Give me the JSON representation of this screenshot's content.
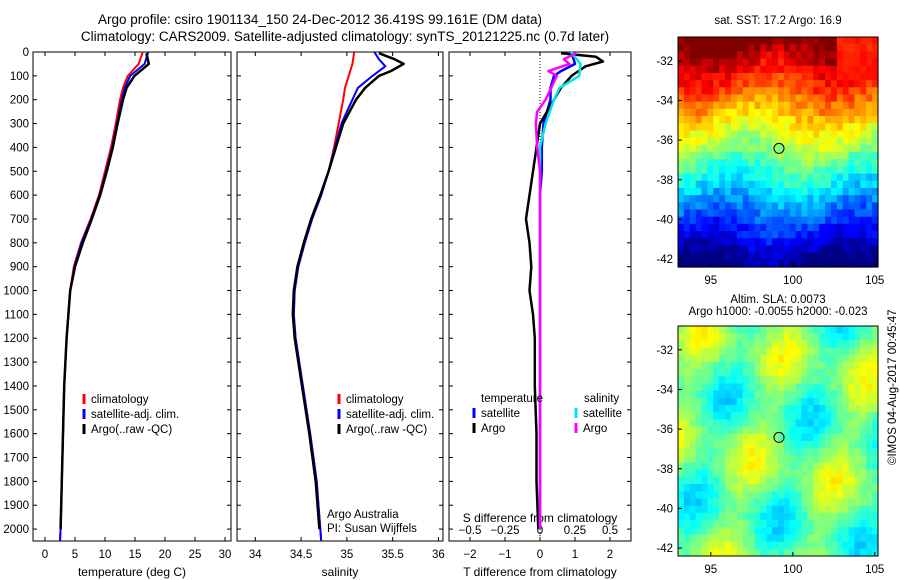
{
  "header": {
    "title_line1": "Argo profile: csiro 1901134_150 24-Dec-2012 36.419S 99.161E (DM data)",
    "title_line2": "Climatology: CARS2009. Satellite-adjusted climatology: synTS_20121225.nc (0.7d later)"
  },
  "colors": {
    "climatology": "#ff0000",
    "satellite": "#0000ff",
    "argo": "#000000",
    "salinity_satellite": "#00e5e5",
    "salinity_argo": "#ff00ff"
  },
  "chart_data": [
    {
      "type": "line",
      "name": "temperature-profile",
      "xlabel": "temperature (deg C)",
      "xlim": [
        -2,
        31
      ],
      "xticks": [
        0,
        5,
        10,
        15,
        20,
        25,
        30
      ],
      "ylim": [
        0,
        2050
      ],
      "yticks": [
        0,
        100,
        200,
        300,
        400,
        500,
        600,
        700,
        800,
        900,
        1000,
        1100,
        1200,
        1300,
        1400,
        1500,
        1600,
        1700,
        1800,
        1900,
        2000
      ],
      "legend": [
        "climatology",
        "satellite-adj. clim.",
        "Argo(..raw -QC)"
      ],
      "series": [
        {
          "name": "climatology",
          "depth": [
            0,
            50,
            100,
            150,
            200,
            300,
            400,
            500,
            600,
            700,
            800,
            900,
            1000,
            1200,
            1400,
            1600,
            1800,
            2000,
            2050
          ],
          "values": [
            16.3,
            15.6,
            13.8,
            13.0,
            12.5,
            11.8,
            11.0,
            10.0,
            9.0,
            7.6,
            6.0,
            4.8,
            4.2,
            3.6,
            3.2,
            3.0,
            2.8,
            2.6,
            2.5
          ]
        },
        {
          "name": "satellite-adj. clim.",
          "depth": [
            0,
            50,
            100,
            150,
            200,
            300,
            400,
            500,
            600,
            700,
            800,
            900,
            1000,
            1200,
            1400,
            1600,
            1800,
            2000,
            2050
          ],
          "values": [
            17.2,
            16.6,
            14.2,
            13.3,
            12.8,
            12.0,
            11.2,
            10.2,
            9.1,
            7.7,
            6.1,
            4.9,
            4.2,
            3.6,
            3.2,
            3.0,
            2.8,
            2.6,
            2.5
          ]
        },
        {
          "name": "Argo(..raw -QC)",
          "depth": [
            5,
            50,
            100,
            150,
            200,
            300,
            400,
            500,
            600,
            700,
            800,
            900,
            1000,
            1200,
            1400,
            1600,
            1800,
            2000
          ],
          "values": [
            16.9,
            17.3,
            14.9,
            13.6,
            13.0,
            12.1,
            11.3,
            10.3,
            9.2,
            7.8,
            6.3,
            5.0,
            4.2,
            3.6,
            3.2,
            3.0,
            2.8,
            2.6
          ]
        }
      ]
    },
    {
      "type": "line",
      "name": "salinity-profile",
      "xlabel": "salinity",
      "xlim": [
        33.8,
        36.05
      ],
      "xticks": [
        34,
        34.5,
        35,
        35.5,
        36
      ],
      "ylim": [
        0,
        2050
      ],
      "legend": [
        "climatology",
        "satellite-adj. clim.",
        "Argo(..raw -QC)"
      ],
      "annotation": [
        "Argo Australia",
        "PI: Susan Wijffels"
      ],
      "series": [
        {
          "name": "climatology",
          "depth": [
            0,
            50,
            100,
            150,
            200,
            300,
            400,
            500,
            600,
            700,
            800,
            900,
            1000,
            1100,
            1200,
            1400,
            1600,
            1800,
            2000,
            2050
          ],
          "values": [
            35.08,
            35.06,
            35.02,
            34.98,
            34.96,
            34.91,
            34.86,
            34.8,
            34.72,
            34.62,
            34.54,
            34.47,
            34.43,
            34.42,
            34.44,
            34.52,
            34.6,
            34.67,
            34.71,
            34.72
          ]
        },
        {
          "name": "satellite-adj. clim.",
          "depth": [
            0,
            30,
            60,
            100,
            150,
            200,
            300,
            400,
            500,
            600,
            700,
            800,
            900,
            1000,
            1100,
            1200,
            1400,
            1600,
            1800,
            2000,
            2050
          ],
          "values": [
            35.3,
            35.35,
            35.42,
            35.28,
            35.12,
            35.06,
            34.94,
            34.87,
            34.8,
            34.72,
            34.62,
            34.54,
            34.47,
            34.43,
            34.42,
            34.44,
            34.52,
            34.6,
            34.67,
            34.71,
            34.72
          ]
        },
        {
          "name": "Argo(..raw -QC)",
          "depth": [
            5,
            30,
            50,
            80,
            100,
            150,
            200,
            300,
            400,
            500,
            600,
            700,
            800,
            900,
            1000,
            1100,
            1200,
            1400,
            1600,
            1800,
            2000
          ],
          "values": [
            35.35,
            35.52,
            35.62,
            35.48,
            35.35,
            35.2,
            35.1,
            34.96,
            34.88,
            34.8,
            34.71,
            34.61,
            34.53,
            34.46,
            34.42,
            34.41,
            34.43,
            34.51,
            34.59,
            34.66,
            34.7
          ]
        }
      ]
    },
    {
      "type": "line",
      "name": "difference-profile",
      "xlabel": "T difference from climatology",
      "xlabel2": "S difference from climatology",
      "xlim": [
        -2.6,
        2.6
      ],
      "xticks": [
        -2,
        -1,
        0,
        1,
        2
      ],
      "xticklabels": [
        "−2",
        "−1",
        "0",
        "1",
        "2"
      ],
      "xticks2": [
        -0.5,
        -0.25,
        0,
        0.25,
        0.5
      ],
      "xticklabels2": [
        "−0.5",
        "−0.25",
        "0",
        "0.25",
        "0.5"
      ],
      "ylim": [
        0,
        2050
      ],
      "legend_left_title": "temperature",
      "legend_right_title": "salinity",
      "legend_left": [
        "satellite",
        "Argo"
      ],
      "legend_right": [
        "satellite",
        "Argo"
      ],
      "series": [
        {
          "name": "temperature satellite",
          "depth": [
            0,
            50,
            80,
            100,
            150,
            200,
            250,
            300,
            400,
            500,
            600,
            800,
            1000,
            1200,
            1600,
            2000
          ],
          "values": [
            0.9,
            1.0,
            0.6,
            0.4,
            0.3,
            0.3,
            0.2,
            0.1,
            0.05,
            0.05,
            0.0,
            0.0,
            0.0,
            0.0,
            0.0,
            0.0
          ]
        },
        {
          "name": "temperature Argo",
          "depth": [
            5,
            20,
            40,
            60,
            100,
            150,
            200,
            250,
            300,
            400,
            500,
            600,
            700,
            800,
            900,
            1000,
            1100,
            1200,
            1400,
            1600,
            1800,
            2000
          ],
          "values": [
            0.6,
            1.6,
            1.8,
            1.3,
            0.9,
            0.6,
            0.4,
            0.2,
            0.0,
            -0.1,
            -0.2,
            -0.3,
            -0.4,
            -0.3,
            -0.25,
            -0.3,
            -0.2,
            -0.15,
            -0.15,
            -0.1,
            -0.1,
            -0.05
          ]
        },
        {
          "name": "salinity satellite",
          "depth": [
            0,
            50,
            100,
            150,
            200,
            300,
            400,
            500,
            600,
            800,
            1000,
            1200,
            1600,
            2000
          ],
          "values": [
            0.22,
            0.29,
            0.28,
            0.14,
            0.1,
            0.04,
            0.0,
            0.0,
            0.0,
            0.0,
            0.0,
            0.0,
            0.0,
            0.0
          ]
        },
        {
          "name": "salinity Argo",
          "depth": [
            5,
            30,
            50,
            80,
            100,
            150,
            200,
            250,
            300,
            400,
            500,
            600,
            800,
            1000,
            1200,
            1600,
            2000
          ],
          "values": [
            0.26,
            0.17,
            0.21,
            0.06,
            0.12,
            0.08,
            0.04,
            -0.02,
            -0.03,
            -0.02,
            0.0,
            0.0,
            0.0,
            0.0,
            0.0,
            0.0,
            0.0
          ]
        }
      ]
    },
    {
      "type": "heatmap",
      "name": "sst-map",
      "title": "sat. SST: 17.2 Argo: 16.9",
      "xticks": [
        95,
        100,
        105
      ],
      "yticks": [
        -32,
        -34,
        -36,
        -38,
        -40,
        -42
      ],
      "xlim": [
        93,
        105.2
      ],
      "ylim": [
        -42.4,
        -30.8
      ],
      "marker": {
        "lon": 99.161,
        "lat": -36.419
      }
    },
    {
      "type": "heatmap",
      "name": "sla-map",
      "title": "Altim. SLA: 0.0073",
      "subtitle": "Argo h1000: -0.0055 h2000: -0.023",
      "xticks": [
        95,
        100,
        105
      ],
      "yticks": [
        -32,
        -34,
        -36,
        -38,
        -40,
        -42
      ],
      "xlim": [
        93,
        105.2
      ],
      "ylim": [
        -42.4,
        -30.8
      ],
      "marker": {
        "lon": 99.161,
        "lat": -36.419
      }
    }
  ],
  "footer": {
    "credit": "©IMOS 04-Aug-2017 00:45:47"
  }
}
